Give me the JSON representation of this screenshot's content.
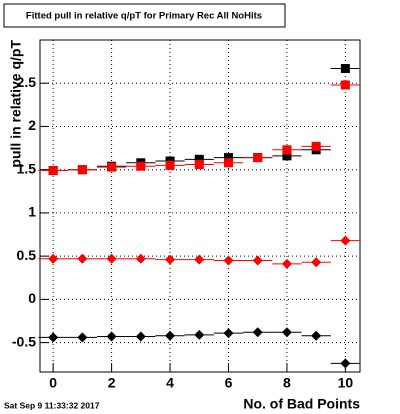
{
  "chart_data": {
    "type": "scatter",
    "title": "Fitted pull in relative q/pT for Primary Rec All NoHits",
    "x_label": "No. of Bad Points",
    "y_label": "pull in relative q/pT",
    "timestamp": "Sat Sep  9 11:33:32 2017",
    "x": [
      0,
      1,
      2,
      3,
      4,
      5,
      6,
      7,
      8,
      9,
      10
    ],
    "series": [
      {
        "color": "#000000",
        "marker": "square",
        "values": [
          1.49,
          1.5,
          1.54,
          1.58,
          1.6,
          1.62,
          1.64,
          1.64,
          1.66,
          1.73,
          2.67
        ]
      },
      {
        "color": "#ff0000",
        "marker": "square",
        "values": [
          1.49,
          1.5,
          1.53,
          1.54,
          1.55,
          1.56,
          1.58,
          1.64,
          1.73,
          1.77,
          2.48
        ]
      },
      {
        "color": "#ff0000",
        "marker": "circle",
        "values": [
          0.47,
          0.47,
          0.47,
          0.47,
          0.46,
          0.46,
          0.45,
          0.45,
          0.41,
          0.43,
          0.68
        ]
      },
      {
        "color": "#000000",
        "marker": "circle",
        "values": [
          -0.44,
          -0.44,
          -0.43,
          -0.43,
          -0.42,
          -0.41,
          -0.39,
          -0.38,
          -0.38,
          -0.42,
          -0.74
        ]
      }
    ],
    "xlim": [
      -0.45,
      10.5
    ],
    "ylim": [
      -0.84,
      3.0
    ],
    "xticks": [
      0,
      2,
      4,
      6,
      8,
      10
    ],
    "yticks": [
      -0.5,
      0,
      0.5,
      1,
      1.5,
      2,
      2.5
    ],
    "grid": true
  }
}
